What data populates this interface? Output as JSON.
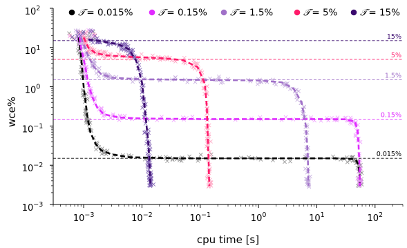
{
  "chart_data": {
    "type": "scatter",
    "xlabel": "cpu time  [s]",
    "ylabel": "wce%",
    "x_scale": "log",
    "y_scale": "log",
    "xlim": [
      0.0003,
      300
    ],
    "ylim": [
      0.001,
      100
    ],
    "x_ticks": [
      {
        "value": 0.001,
        "base": "10",
        "exp": "−3"
      },
      {
        "value": 0.01,
        "base": "10",
        "exp": "−2"
      },
      {
        "value": 0.1,
        "base": "10",
        "exp": "−1"
      },
      {
        "value": 1,
        "base": "10",
        "exp": "0"
      },
      {
        "value": 10,
        "base": "10",
        "exp": "1"
      },
      {
        "value": 100,
        "base": "10",
        "exp": "2"
      }
    ],
    "y_ticks": [
      {
        "value": 0.001,
        "base": "10",
        "exp": "−3"
      },
      {
        "value": 0.01,
        "base": "10",
        "exp": "−2"
      },
      {
        "value": 0.1,
        "base": "10",
        "exp": "−1"
      },
      {
        "value": 1,
        "base": "10",
        "exp": "0"
      },
      {
        "value": 10,
        "base": "10",
        "exp": "1"
      },
      {
        "value": 100,
        "base": "10",
        "exp": "2"
      }
    ],
    "legend": {
      "placement": "top",
      "symbol": "𝒯",
      "entries": [
        {
          "label": "= 0.015%",
          "color": "#000000"
        },
        {
          "label": "= 0.15%",
          "color": "#e02bff"
        },
        {
          "label": "= 1.5%",
          "color": "#a070c8"
        },
        {
          "label": "= 5%",
          "color": "#ff1a6a"
        },
        {
          "label": "= 15%",
          "color": "#3a0a6e"
        }
      ]
    },
    "series": [
      {
        "name": "𝒯 = 0.015%",
        "threshold": 0.015,
        "threshold_label": "0.015%",
        "color": "#000000",
        "scatter_color": "#888888",
        "curve": [
          [
            0.00082,
            18
          ],
          [
            0.00088,
            8
          ],
          [
            0.00094,
            3
          ],
          [
            0.001,
            1
          ],
          [
            0.00108,
            0.4
          ],
          [
            0.00115,
            0.18
          ],
          [
            0.0013,
            0.07
          ],
          [
            0.0016,
            0.035
          ],
          [
            0.002,
            0.024
          ],
          [
            0.003,
            0.019
          ],
          [
            0.006,
            0.016
          ],
          [
            0.015,
            0.0155
          ],
          [
            0.05,
            0.015
          ],
          [
            1,
            0.015
          ],
          [
            20,
            0.015
          ],
          [
            40,
            0.0145
          ],
          [
            48,
            0.013
          ],
          [
            52,
            0.01
          ],
          [
            54,
            0.006
          ],
          [
            55,
            0.003
          ]
        ],
        "scatter_region": [
          [
            0.0005,
            0.006
          ],
          [
            0.0012,
            0.08
          ],
          [
            0.0015,
            0.04
          ],
          [
            0.004,
            0.02
          ],
          [
            0.03,
            0.014
          ],
          [
            40,
            0.012
          ],
          [
            60,
            0.0028
          ]
        ]
      },
      {
        "name": "𝒯 = 0.15%",
        "threshold": 0.15,
        "threshold_label": "0.15%",
        "color": "#e02bff",
        "scatter_color": "#ee99ff",
        "curve": [
          [
            0.00085,
            18
          ],
          [
            0.0009,
            10
          ],
          [
            0.001,
            5
          ],
          [
            0.0011,
            2.5
          ],
          [
            0.0012,
            1.2
          ],
          [
            0.0014,
            0.55
          ],
          [
            0.0017,
            0.3
          ],
          [
            0.0022,
            0.2
          ],
          [
            0.004,
            0.165
          ],
          [
            0.01,
            0.155
          ],
          [
            0.1,
            0.15
          ],
          [
            10,
            0.15
          ],
          [
            30,
            0.148
          ],
          [
            45,
            0.13
          ],
          [
            50,
            0.08
          ],
          [
            52,
            0.035
          ],
          [
            54,
            0.01
          ],
          [
            55,
            0.003
          ]
        ],
        "scatter_region": [
          [
            0.0005,
            0.4
          ],
          [
            0.001,
            0.15
          ],
          [
            0.01,
            0.14
          ],
          [
            50,
            0.0028
          ]
        ]
      },
      {
        "name": "𝒯 = 1.5%",
        "threshold": 1.5,
        "threshold_label": "1.5%",
        "color": "#a070c8",
        "scatter_color": "#c2a8dc",
        "curve": [
          [
            0.0009,
            18
          ],
          [
            0.001,
            12
          ],
          [
            0.0012,
            6
          ],
          [
            0.0015,
            3.2
          ],
          [
            0.002,
            2.1
          ],
          [
            0.003,
            1.7
          ],
          [
            0.01,
            1.55
          ],
          [
            0.1,
            1.5
          ],
          [
            1,
            1.45
          ],
          [
            2.5,
            1.3
          ],
          [
            4,
            0.9
          ],
          [
            5.5,
            0.4
          ],
          [
            6.5,
            0.1
          ],
          [
            7,
            0.02
          ],
          [
            7.2,
            0.003
          ]
        ],
        "scatter_region": [
          [
            0.0005,
            0.3
          ],
          [
            0.004,
            0.02
          ],
          [
            0.015,
            0.003
          ],
          [
            6,
            0.0028
          ]
        ]
      },
      {
        "name": "𝒯 = 5%",
        "threshold": 5,
        "threshold_label": "5%",
        "color": "#ff1a6a",
        "scatter_color": "#ffa0c0",
        "curve": [
          [
            0.001,
            18
          ],
          [
            0.0012,
            10
          ],
          [
            0.0016,
            7.2
          ],
          [
            0.0025,
            6.3
          ],
          [
            0.006,
            5.8
          ],
          [
            0.02,
            5.4
          ],
          [
            0.05,
            4.8
          ],
          [
            0.09,
            3.2
          ],
          [
            0.12,
            1.2
          ],
          [
            0.13,
            0.3
          ],
          [
            0.135,
            0.05
          ],
          [
            0.14,
            0.01
          ],
          [
            0.143,
            0.003
          ]
        ],
        "scatter_region": [
          [
            0.0005,
            0.3
          ],
          [
            0.1,
            0.02
          ],
          [
            0.15,
            0.0028
          ]
        ]
      },
      {
        "name": "𝒯 = 15%",
        "threshold": 15,
        "threshold_label": "15%",
        "color": "#3a0a6e",
        "scatter_color": "#7a5ab0",
        "curve": [
          [
            0.0012,
            16
          ],
          [
            0.002,
            14.5
          ],
          [
            0.004,
            12
          ],
          [
            0.006,
            9
          ],
          [
            0.008,
            4.5
          ],
          [
            0.01,
            1.3
          ],
          [
            0.011,
            0.35
          ],
          [
            0.012,
            0.1
          ],
          [
            0.013,
            0.03
          ],
          [
            0.0135,
            0.01
          ],
          [
            0.014,
            0.003
          ]
        ],
        "scatter_region": [
          [
            0.0008,
            0.5
          ],
          [
            0.01,
            0.01
          ],
          [
            0.015,
            0.0028
          ]
        ]
      }
    ]
  }
}
